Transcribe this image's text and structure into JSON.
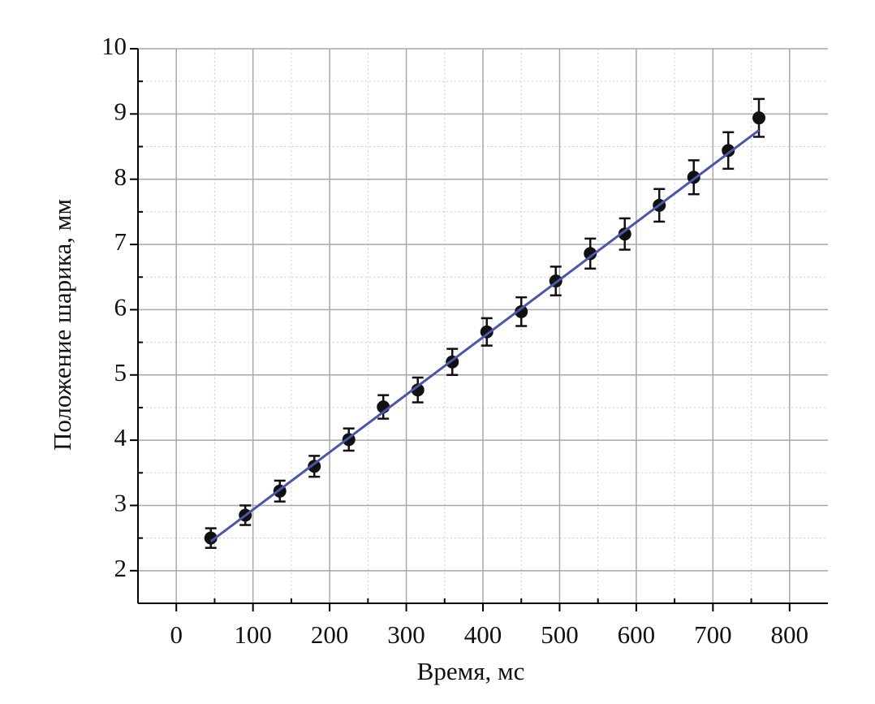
{
  "chart_data": {
    "type": "scatter",
    "x_label": "Время, мс",
    "y_label": "Положение шарика, мм",
    "xlim": [
      -50,
      850
    ],
    "ylim": [
      1.5,
      10
    ],
    "xticks": [
      0,
      100,
      200,
      300,
      400,
      500,
      600,
      700,
      800
    ],
    "yticks": [
      2,
      3,
      4,
      5,
      6,
      7,
      8,
      9,
      10
    ],
    "grid": true,
    "series": [
      {
        "color": "#111111",
        "x": [
          45,
          90,
          135,
          180,
          225,
          270,
          315,
          360,
          405,
          450,
          495,
          540,
          585,
          630,
          675,
          720,
          760
        ],
        "values": [
          2.5,
          2.85,
          3.22,
          3.6,
          4.01,
          4.51,
          4.77,
          5.2,
          5.66,
          5.97,
          6.44,
          6.86,
          7.16,
          7.6,
          8.03,
          8.44,
          8.94
        ],
        "errors": [
          0.15,
          0.15,
          0.16,
          0.16,
          0.17,
          0.18,
          0.19,
          0.2,
          0.21,
          0.22,
          0.22,
          0.23,
          0.24,
          0.25,
          0.26,
          0.28,
          0.29
        ]
      },
      {
        "type": "line",
        "color": "#4a56a6",
        "x": [
          45,
          760
        ],
        "values": [
          2.45,
          8.75
        ]
      }
    ]
  }
}
